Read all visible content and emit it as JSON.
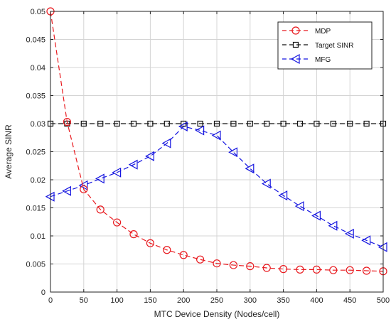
{
  "chart_data": {
    "type": "line",
    "xlabel": "MTC Device Density (Nodes/cell)",
    "ylabel": "Average SINR",
    "xlim": [
      0,
      500
    ],
    "ylim": [
      0,
      0.05
    ],
    "x_ticks": [
      0,
      50,
      100,
      150,
      200,
      250,
      300,
      350,
      400,
      450,
      500
    ],
    "y_ticks": [
      0,
      0.005,
      0.01,
      0.015,
      0.02,
      0.025,
      0.03,
      0.035,
      0.04,
      0.045,
      0.05
    ],
    "x_tick_labels": [
      "0",
      "50",
      "100",
      "150",
      "200",
      "250",
      "300",
      "350",
      "400",
      "450",
      "500"
    ],
    "y_tick_labels": [
      "0",
      "0.005",
      "0.01",
      "0.015",
      "0.02",
      "0.025",
      "0.03",
      "0.035",
      "0.04",
      "0.045",
      "0.05"
    ],
    "grid": true,
    "legend_position": "top-right",
    "x": [
      0,
      25,
      50,
      75,
      100,
      125,
      150,
      175,
      200,
      225,
      250,
      275,
      300,
      325,
      350,
      375,
      400,
      425,
      450,
      475,
      500
    ],
    "series": [
      {
        "name": "MDP",
        "color": "#e8191e",
        "marker": "circle",
        "dash": "dashed",
        "values": [
          0.05,
          0.0303,
          0.0183,
          0.0147,
          0.0124,
          0.0103,
          0.0087,
          0.0075,
          0.0066,
          0.0058,
          0.0051,
          0.0048,
          0.0046,
          0.0043,
          0.0041,
          0.004,
          0.004,
          0.0039,
          0.0039,
          0.0038,
          0.0037
        ]
      },
      {
        "name": "Target SINR",
        "color": "#111111",
        "marker": "square",
        "dash": "dashed",
        "values": [
          0.03,
          0.03,
          0.03,
          0.03,
          0.03,
          0.03,
          0.03,
          0.03,
          0.03,
          0.03,
          0.03,
          0.03,
          0.03,
          0.03,
          0.03,
          0.03,
          0.03,
          0.03,
          0.03,
          0.03,
          0.03
        ]
      },
      {
        "name": "MFG",
        "color": "#1515e0",
        "marker": "triangle-left",
        "dash": "dashed",
        "values": [
          0.017,
          0.018,
          0.019,
          0.0202,
          0.0213,
          0.0227,
          0.0242,
          0.0265,
          0.0295,
          0.0288,
          0.0279,
          0.0249,
          0.022,
          0.0193,
          0.0172,
          0.0153,
          0.0136,
          0.0118,
          0.0104,
          0.0092,
          0.008
        ]
      }
    ]
  }
}
